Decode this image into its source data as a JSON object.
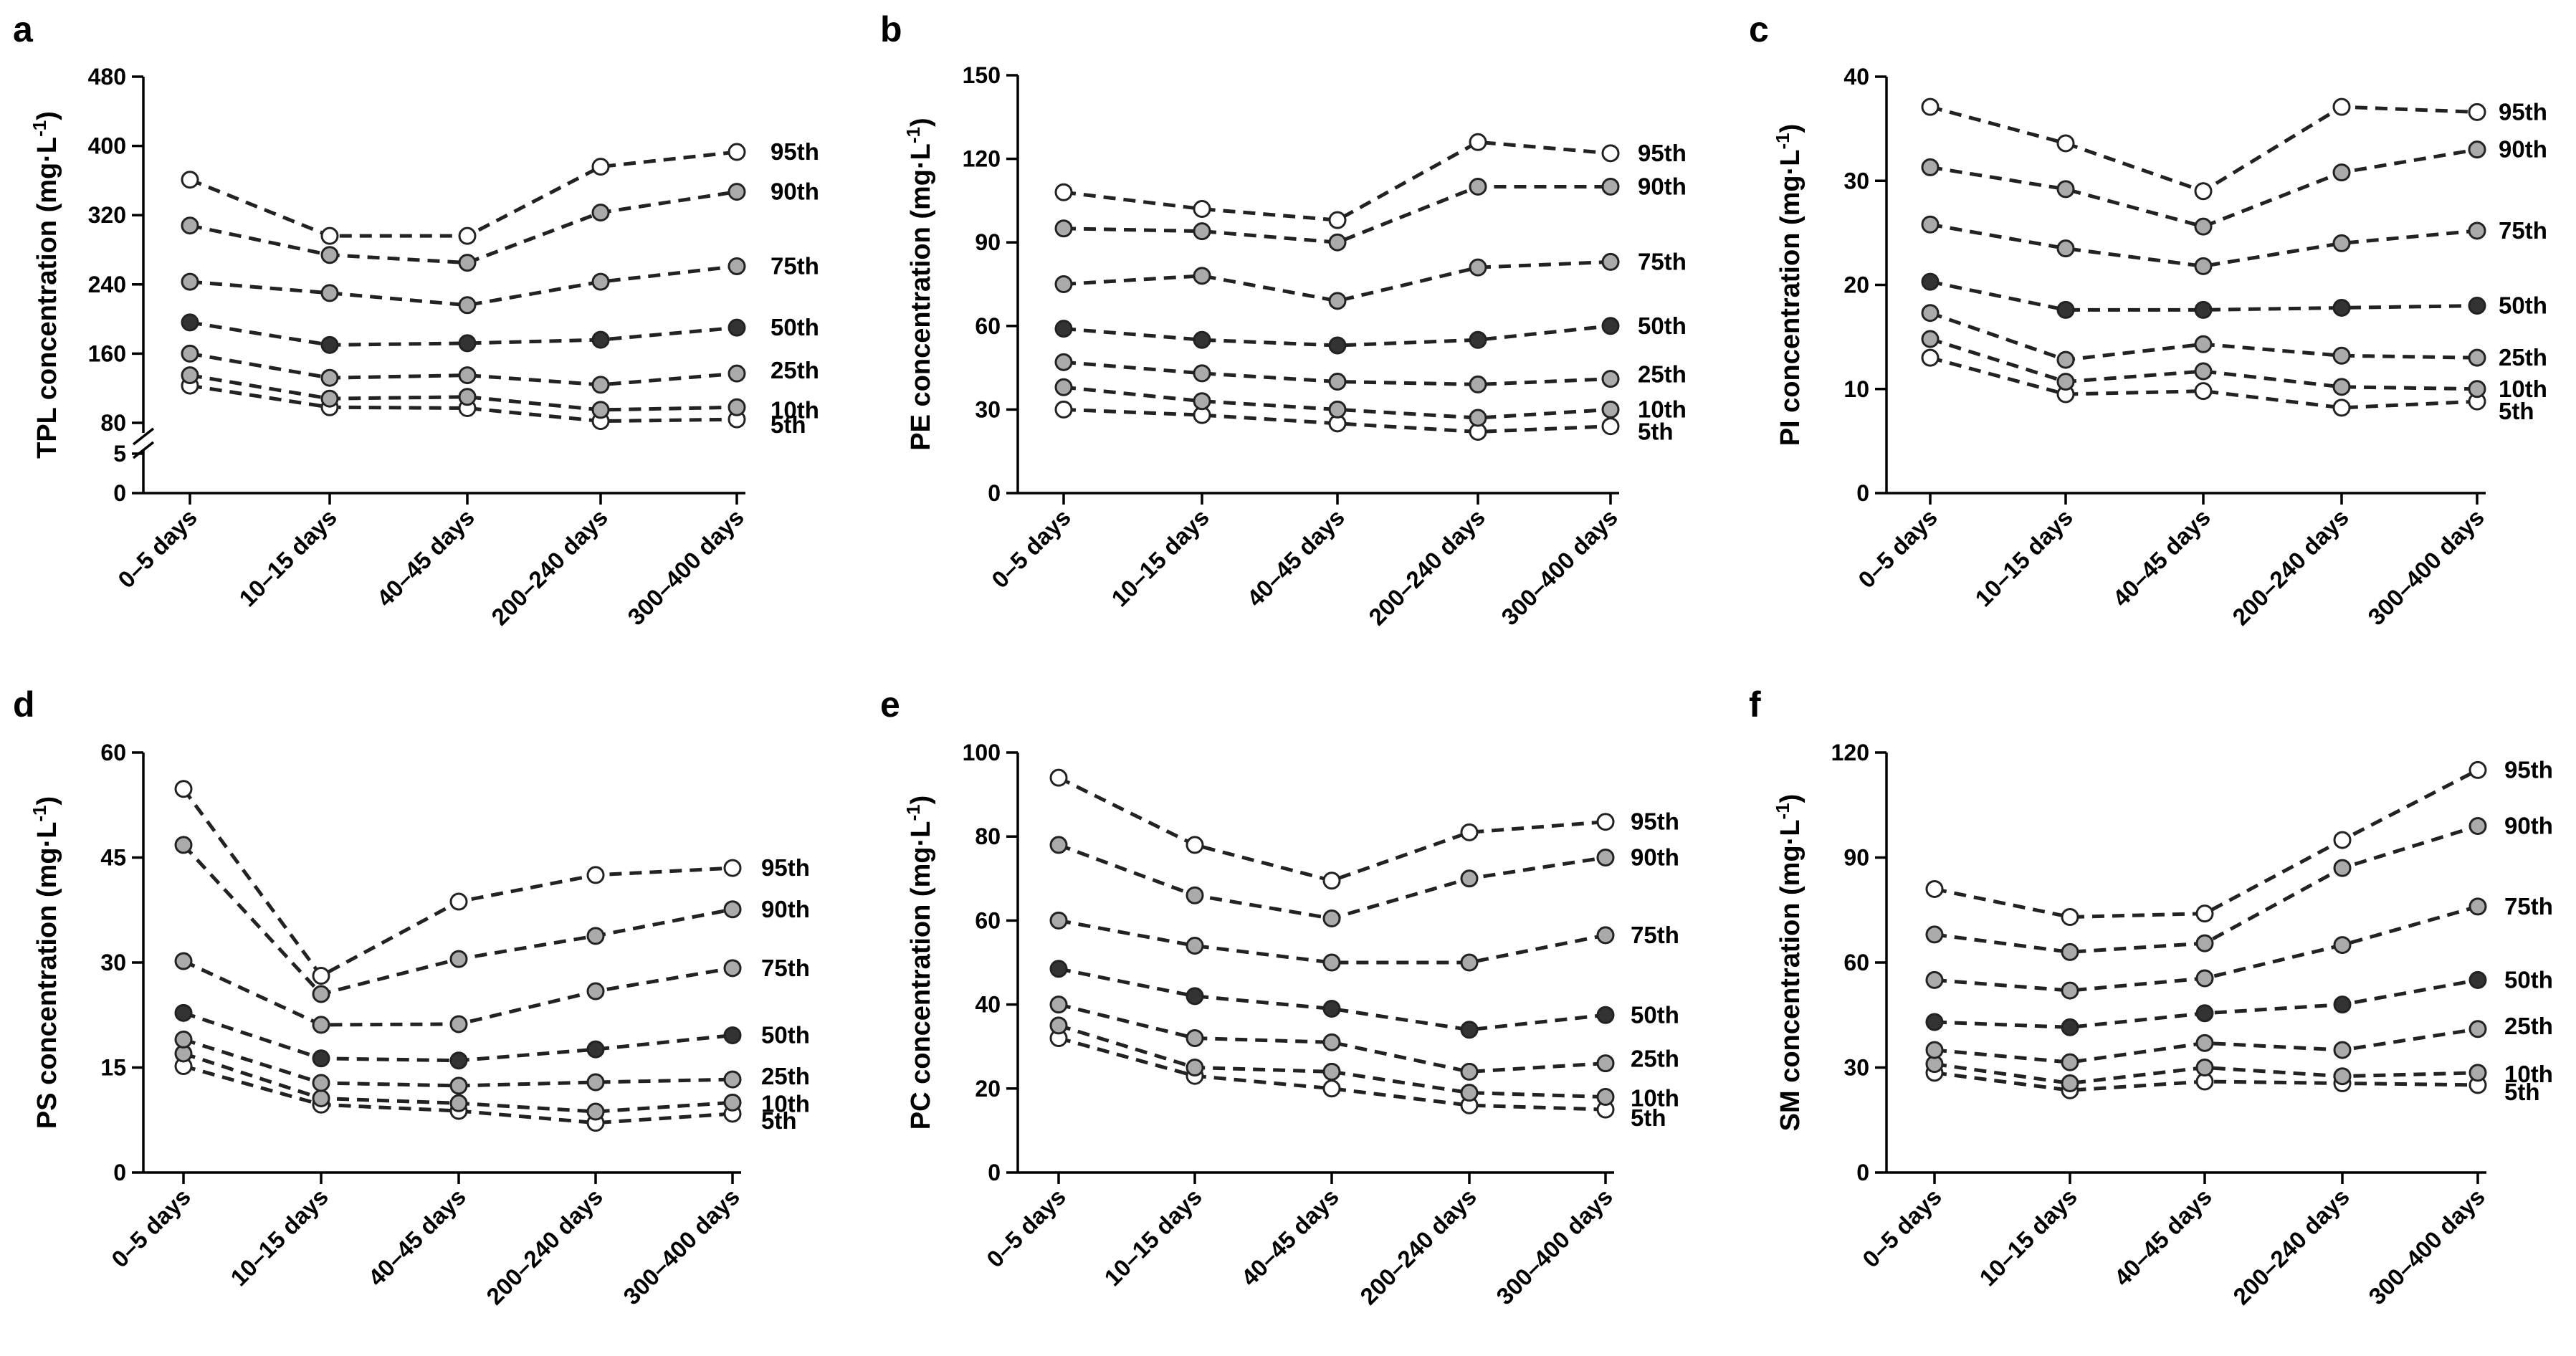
{
  "chart_data": [
    {
      "type": "line",
      "panel": "a",
      "ylabel": "TPL concentration (mg·L",
      "ylabel_sup": "-1",
      "ylabel_close": ")",
      "categories": [
        "0–5 days",
        "10–15 days",
        "40–45 days",
        "200–240 days",
        "300–400 days"
      ],
      "y_broken": true,
      "ylim": [
        80,
        480
      ],
      "yticks": [
        80,
        160,
        240,
        320,
        400,
        480
      ],
      "lower_ticks": [
        0,
        5
      ],
      "lower_label_values": [
        5
      ],
      "series": [
        {
          "name": "5th",
          "label": "5th",
          "fill": "#ffffff",
          "values": [
            123,
            98,
            97,
            82,
            84
          ]
        },
        {
          "name": "10th",
          "label": "10th",
          "fill": "#aaaaaa",
          "values": [
            135,
            108,
            110,
            95,
            98
          ]
        },
        {
          "name": "25th",
          "label": "25th",
          "fill": "#aaaaaa",
          "values": [
            160,
            132,
            135,
            124,
            137
          ]
        },
        {
          "name": "50th",
          "label": "50th",
          "fill": "#333333",
          "values": [
            196,
            170,
            172,
            176,
            190
          ]
        },
        {
          "name": "75th",
          "label": "75th",
          "fill": "#aaaaaa",
          "values": [
            243,
            230,
            216,
            243,
            261
          ]
        },
        {
          "name": "90th",
          "label": "90th",
          "fill": "#aaaaaa",
          "values": [
            308,
            274,
            265,
            323,
            347
          ]
        },
        {
          "name": "95th",
          "label": "95th",
          "fill": "#ffffff",
          "values": [
            361,
            296,
            296,
            376,
            393
          ]
        }
      ]
    },
    {
      "type": "line",
      "panel": "b",
      "ylabel": "PE concentration (mg·L",
      "ylabel_sup": "-1",
      "ylabel_close": ")",
      "categories": [
        "0–5 days",
        "10–15 days",
        "40–45 days",
        "200–240 days",
        "300–400 days"
      ],
      "y_broken": false,
      "ylim": [
        0,
        150
      ],
      "yticks": [
        0,
        30,
        60,
        90,
        120,
        150
      ],
      "series": [
        {
          "name": "5th",
          "label": "5th",
          "fill": "#ffffff",
          "values": [
            30,
            28,
            25,
            22,
            24
          ]
        },
        {
          "name": "10th",
          "label": "10th",
          "fill": "#aaaaaa",
          "values": [
            38,
            33,
            30,
            27,
            30
          ]
        },
        {
          "name": "25th",
          "label": "25th",
          "fill": "#aaaaaa",
          "values": [
            47,
            43,
            40,
            39,
            41
          ]
        },
        {
          "name": "50th",
          "label": "50th",
          "fill": "#333333",
          "values": [
            59,
            55,
            53,
            55,
            60
          ]
        },
        {
          "name": "75th",
          "label": "75th",
          "fill": "#aaaaaa",
          "values": [
            75,
            78,
            69,
            81,
            83
          ]
        },
        {
          "name": "90th",
          "label": "90th",
          "fill": "#aaaaaa",
          "values": [
            95,
            94,
            90,
            110,
            110
          ]
        },
        {
          "name": "95th",
          "label": "95th",
          "fill": "#ffffff",
          "values": [
            108,
            102,
            98,
            126,
            122
          ]
        }
      ]
    },
    {
      "type": "line",
      "panel": "c",
      "ylabel": "PI concentration (mg·L",
      "ylabel_sup": "-1",
      "ylabel_close": ")",
      "categories": [
        "0–5 days",
        "10–15 days",
        "40–45 days",
        "200–240 days",
        "300–400 days"
      ],
      "y_broken": false,
      "ylim": [
        0,
        40
      ],
      "yticks": [
        0,
        10,
        20,
        30,
        40
      ],
      "series": [
        {
          "name": "5th",
          "label": "5th",
          "fill": "#ffffff",
          "values": [
            13,
            9.5,
            9.8,
            8.2,
            8.8
          ]
        },
        {
          "name": "10th",
          "label": "10th",
          "fill": "#aaaaaa",
          "values": [
            14.8,
            10.7,
            11.7,
            10.2,
            10
          ]
        },
        {
          "name": "25th",
          "label": "25th",
          "fill": "#aaaaaa",
          "values": [
            17.3,
            12.8,
            14.3,
            13.2,
            13
          ]
        },
        {
          "name": "50th",
          "label": "50th",
          "fill": "#333333",
          "values": [
            20.3,
            17.6,
            17.6,
            17.8,
            18
          ]
        },
        {
          "name": "75th",
          "label": "75th",
          "fill": "#aaaaaa",
          "values": [
            25.8,
            23.5,
            21.8,
            24,
            25.2
          ]
        },
        {
          "name": "90th",
          "label": "90th",
          "fill": "#aaaaaa",
          "values": [
            31.3,
            29.2,
            25.6,
            30.8,
            33
          ]
        },
        {
          "name": "95th",
          "label": "95th",
          "fill": "#ffffff",
          "values": [
            37.1,
            33.6,
            29,
            37.1,
            36.6
          ]
        }
      ]
    },
    {
      "type": "line",
      "panel": "d",
      "ylabel": "PS concentration (mg·L",
      "ylabel_sup": "-1",
      "ylabel_close": ")",
      "categories": [
        "0–5 days",
        "10–15 days",
        "40–45 days",
        "200–240 days",
        "300–400 days"
      ],
      "y_broken": false,
      "ylim": [
        0,
        60
      ],
      "yticks": [
        0,
        15,
        30,
        45,
        60
      ],
      "series": [
        {
          "name": "5th",
          "label": "5th",
          "fill": "#ffffff",
          "values": [
            15.2,
            9.7,
            8.8,
            7.1,
            8.4
          ]
        },
        {
          "name": "10th",
          "label": "10th",
          "fill": "#aaaaaa",
          "values": [
            17,
            10.6,
            9.9,
            8.7,
            10
          ]
        },
        {
          "name": "25th",
          "label": "25th",
          "fill": "#aaaaaa",
          "values": [
            19,
            12.8,
            12.4,
            12.9,
            13.3
          ]
        },
        {
          "name": "50th",
          "label": "50th",
          "fill": "#333333",
          "values": [
            22.8,
            16.3,
            16,
            17.6,
            19.6
          ]
        },
        {
          "name": "75th",
          "label": "75th",
          "fill": "#aaaaaa",
          "values": [
            30.2,
            21.1,
            21.2,
            25.9,
            29.2
          ]
        },
        {
          "name": "90th",
          "label": "90th",
          "fill": "#aaaaaa",
          "values": [
            46.8,
            25.5,
            30.5,
            33.8,
            37.6
          ]
        },
        {
          "name": "95th",
          "label": "95th",
          "fill": "#ffffff",
          "values": [
            54.8,
            28.1,
            38.7,
            42.5,
            43.5
          ]
        }
      ]
    },
    {
      "type": "line",
      "panel": "e",
      "ylabel": "PC concentration (mg·L",
      "ylabel_sup": "-1",
      "ylabel_close": ")",
      "categories": [
        "0–5 days",
        "10–15 days",
        "40–45 days",
        "200–240 days",
        "300–400 days"
      ],
      "y_broken": false,
      "ylim": [
        0,
        100
      ],
      "yticks": [
        0,
        20,
        40,
        60,
        80,
        100
      ],
      "series": [
        {
          "name": "5th",
          "label": "5th",
          "fill": "#ffffff",
          "values": [
            32,
            23,
            20,
            16,
            15
          ]
        },
        {
          "name": "10th",
          "label": "10th",
          "fill": "#aaaaaa",
          "values": [
            35,
            25,
            24,
            19,
            18
          ]
        },
        {
          "name": "25th",
          "label": "25th",
          "fill": "#aaaaaa",
          "values": [
            40,
            32,
            31,
            24,
            26
          ]
        },
        {
          "name": "50th",
          "label": "50th",
          "fill": "#333333",
          "values": [
            48.5,
            42,
            39,
            34,
            37.5
          ]
        },
        {
          "name": "75th",
          "label": "75th",
          "fill": "#aaaaaa",
          "values": [
            60,
            54,
            50,
            50,
            56.5
          ]
        },
        {
          "name": "90th",
          "label": "90th",
          "fill": "#aaaaaa",
          "values": [
            78,
            66,
            60.5,
            70,
            75
          ]
        },
        {
          "name": "95th",
          "label": "95th",
          "fill": "#ffffff",
          "values": [
            94,
            78,
            69.5,
            81,
            83.5
          ]
        }
      ]
    },
    {
      "type": "line",
      "panel": "f",
      "ylabel": "SM concentration (mg·L",
      "ylabel_sup": "-1",
      "ylabel_close": ")",
      "categories": [
        "0–5 days",
        "10–15 days",
        "40–45 days",
        "200–240 days",
        "300–400 days"
      ],
      "y_broken": false,
      "ylim": [
        0,
        120
      ],
      "yticks": [
        0,
        30,
        60,
        90,
        120
      ],
      "series": [
        {
          "name": "5th",
          "label": "5th",
          "fill": "#ffffff",
          "values": [
            28.5,
            23.5,
            26,
            25.5,
            25
          ]
        },
        {
          "name": "10th",
          "label": "10th",
          "fill": "#aaaaaa",
          "values": [
            31,
            25.5,
            30,
            27.5,
            28.5
          ]
        },
        {
          "name": "25th",
          "label": "25th",
          "fill": "#aaaaaa",
          "values": [
            35,
            31.5,
            37,
            35,
            41
          ]
        },
        {
          "name": "50th",
          "label": "50th",
          "fill": "#333333",
          "values": [
            43,
            41.5,
            45.5,
            48,
            55
          ]
        },
        {
          "name": "75th",
          "label": "75th",
          "fill": "#aaaaaa",
          "values": [
            55,
            52,
            55.5,
            65,
            76
          ]
        },
        {
          "name": "90th",
          "label": "90th",
          "fill": "#aaaaaa",
          "values": [
            68,
            63,
            65.5,
            87,
            99
          ]
        },
        {
          "name": "95th",
          "label": "95th",
          "fill": "#ffffff",
          "values": [
            81,
            73,
            74,
            95,
            115
          ]
        }
      ]
    }
  ]
}
